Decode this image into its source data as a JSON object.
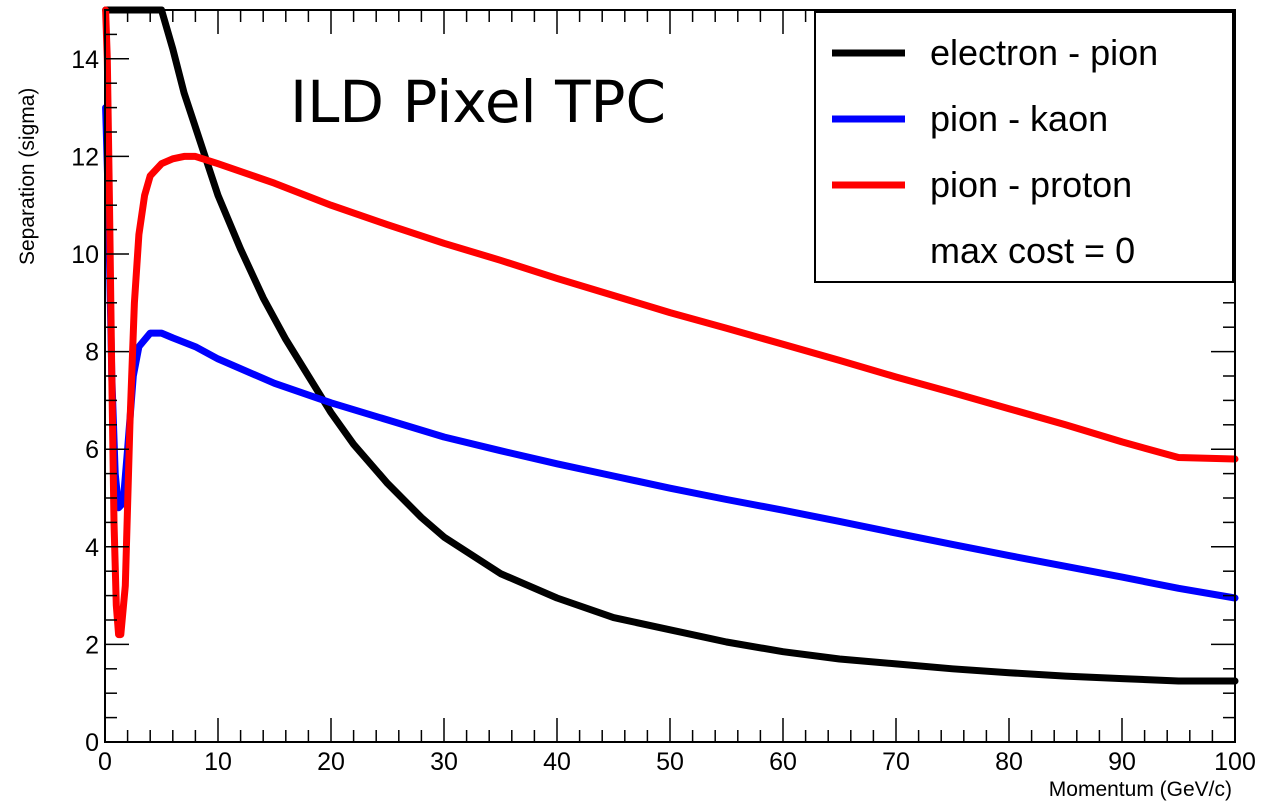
{
  "chart_data": {
    "type": "line",
    "title": "",
    "annotation": "ILD Pixel TPC",
    "xlabel": "Momentum (GeV/c)",
    "ylabel": "Separation (sigma)",
    "xlim": [
      0,
      100
    ],
    "ylim": [
      0,
      15
    ],
    "xticks": [
      0,
      10,
      20,
      30,
      40,
      50,
      60,
      70,
      80,
      90,
      100
    ],
    "yticks": [
      0,
      2,
      4,
      6,
      8,
      10,
      12,
      14
    ],
    "grid": false,
    "legend_position": "top-right",
    "legend_note": "max cost = 0",
    "series": [
      {
        "name": "electron - pion",
        "color": "#000000",
        "points": [
          [
            0.05,
            15
          ],
          [
            2,
            15
          ],
          [
            4,
            15
          ],
          [
            4.5,
            15.1
          ],
          [
            5,
            15
          ],
          [
            6,
            14.2
          ],
          [
            7,
            13.3
          ],
          [
            8,
            12.6
          ],
          [
            9,
            11.9
          ],
          [
            10,
            11.2
          ],
          [
            12,
            10.1
          ],
          [
            14,
            9.1
          ],
          [
            16,
            8.25
          ],
          [
            18,
            7.5
          ],
          [
            20,
            6.75
          ],
          [
            22,
            6.1
          ],
          [
            25,
            5.3
          ],
          [
            28,
            4.6
          ],
          [
            30,
            4.2
          ],
          [
            35,
            3.45
          ],
          [
            40,
            2.95
          ],
          [
            45,
            2.55
          ],
          [
            50,
            2.3
          ],
          [
            55,
            2.05
          ],
          [
            60,
            1.85
          ],
          [
            65,
            1.7
          ],
          [
            70,
            1.6
          ],
          [
            75,
            1.5
          ],
          [
            80,
            1.42
          ],
          [
            85,
            1.35
          ],
          [
            90,
            1.3
          ],
          [
            95,
            1.25
          ],
          [
            100,
            1.25
          ]
        ]
      },
      {
        "name": "pion - kaon",
        "color": "#0000ff",
        "points": [
          [
            0.05,
            13
          ],
          [
            0.3,
            11
          ],
          [
            0.6,
            7.5
          ],
          [
            0.9,
            5.5
          ],
          [
            1.2,
            4.8
          ],
          [
            1.6,
            4.9
          ],
          [
            2,
            6
          ],
          [
            2.5,
            7.5
          ],
          [
            3,
            8.1
          ],
          [
            4,
            8.38
          ],
          [
            5,
            8.38
          ],
          [
            6,
            8.28
          ],
          [
            8,
            8.1
          ],
          [
            10,
            7.85
          ],
          [
            15,
            7.35
          ],
          [
            20,
            6.95
          ],
          [
            25,
            6.6
          ],
          [
            30,
            6.25
          ],
          [
            35,
            5.97
          ],
          [
            40,
            5.7
          ],
          [
            45,
            5.45
          ],
          [
            50,
            5.2
          ],
          [
            55,
            4.97
          ],
          [
            60,
            4.75
          ],
          [
            65,
            4.52
          ],
          [
            70,
            4.28
          ],
          [
            75,
            4.05
          ],
          [
            80,
            3.82
          ],
          [
            85,
            3.6
          ],
          [
            90,
            3.38
          ],
          [
            95,
            3.15
          ],
          [
            100,
            2.95
          ]
        ]
      },
      {
        "name": "pion - proton",
        "color": "#ff0000",
        "points": [
          [
            0.05,
            15
          ],
          [
            0.2,
            14
          ],
          [
            0.4,
            11
          ],
          [
            0.6,
            7.5
          ],
          [
            0.8,
            4.5
          ],
          [
            1,
            2.8
          ],
          [
            1.2,
            2.2
          ],
          [
            1.4,
            2.2
          ],
          [
            1.8,
            3.2
          ],
          [
            2.2,
            6.5
          ],
          [
            2.6,
            9
          ],
          [
            3,
            10.4
          ],
          [
            3.5,
            11.2
          ],
          [
            4,
            11.6
          ],
          [
            5,
            11.85
          ],
          [
            6,
            11.95
          ],
          [
            7,
            12.0
          ],
          [
            8,
            12.0
          ],
          [
            10,
            11.85
          ],
          [
            15,
            11.45
          ],
          [
            20,
            11.0
          ],
          [
            25,
            10.6
          ],
          [
            30,
            10.22
          ],
          [
            35,
            9.87
          ],
          [
            40,
            9.5
          ],
          [
            45,
            9.15
          ],
          [
            50,
            8.8
          ],
          [
            55,
            8.48
          ],
          [
            60,
            8.15
          ],
          [
            65,
            7.82
          ],
          [
            70,
            7.48
          ],
          [
            75,
            7.16
          ],
          [
            80,
            6.83
          ],
          [
            85,
            6.5
          ],
          [
            90,
            6.15
          ],
          [
            95,
            5.83
          ],
          [
            100,
            5.8
          ]
        ]
      }
    ]
  }
}
